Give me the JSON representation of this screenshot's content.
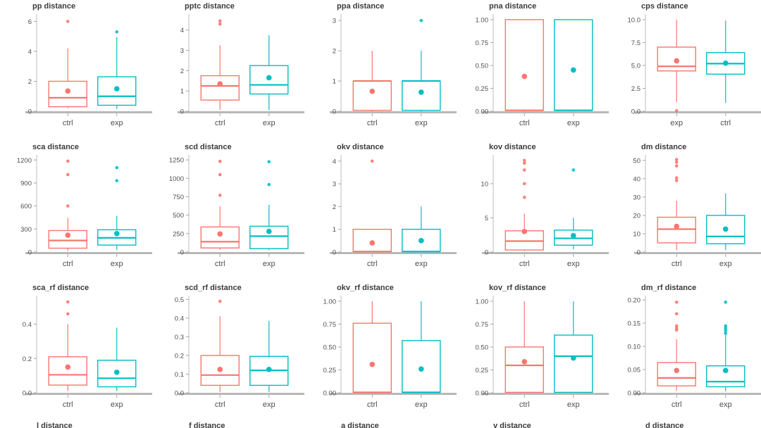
{
  "page": {
    "background": "#ffffff"
  },
  "colors": {
    "box_red": "#F8766D",
    "box_teal": "#00BFC4",
    "axis_line": "#b8b8b8",
    "tick_mark": "#a6a6a6",
    "tick_text": "#4f4f4f",
    "title_text": "#3b3b3b"
  },
  "layout_hints": {
    "columns": 5,
    "full_rows": 3,
    "partial_fourth_row": true,
    "grid": "off",
    "legend": "none"
  },
  "partial_bottom_titles": [
    "l distance",
    "f distance",
    "a distance",
    "v distance",
    "d distance"
  ],
  "chart_data": [
    {
      "type": "box",
      "title": "pp distance",
      "ylim": [
        0,
        6.3
      ],
      "yticks": [
        0,
        2,
        4,
        6
      ],
      "ytick_labels": [
        "0",
        "2",
        "4",
        "6"
      ],
      "categories": [
        "ctrl",
        "exp"
      ],
      "series": [
        {
          "name": "ctrl",
          "color": "#F8766D",
          "lo": 0.2,
          "q1": 0.3,
          "median": 0.9,
          "q3": 2.0,
          "hi": 4.2,
          "mean": 1.35,
          "outliers": [
            6.0
          ]
        },
        {
          "name": "exp",
          "color": "#00BFC4",
          "lo": 0.15,
          "q1": 0.4,
          "median": 1.0,
          "q3": 2.3,
          "hi": 4.95,
          "mean": 1.5,
          "outliers": [
            5.3
          ]
        }
      ]
    },
    {
      "type": "box",
      "title": "pptc distance",
      "ylim": [
        0,
        4.65
      ],
      "yticks": [
        0,
        1,
        2,
        3,
        4
      ],
      "ytick_labels": [
        "0",
        "1",
        "2",
        "3",
        "4"
      ],
      "categories": [
        "ctrl",
        "exp"
      ],
      "series": [
        {
          "name": "ctrl",
          "color": "#F8766D",
          "lo": 0.07,
          "q1": 0.55,
          "median": 1.25,
          "q3": 1.75,
          "hi": 3.25,
          "mean": 1.35,
          "outliers": [
            4.3,
            4.45
          ]
        },
        {
          "name": "exp",
          "color": "#00BFC4",
          "lo": 0.05,
          "q1": 0.85,
          "median": 1.3,
          "q3": 2.25,
          "hi": 3.75,
          "mean": 1.65,
          "outliers": []
        }
      ]
    },
    {
      "type": "box",
      "title": "ppa distance",
      "ylim": [
        0,
        3.12
      ],
      "yticks": [
        0,
        1,
        2,
        3
      ],
      "ytick_labels": [
        "0",
        "1",
        "2",
        "3"
      ],
      "categories": [
        "ctrl",
        "exp"
      ],
      "series": [
        {
          "name": "ctrl",
          "color": "#F8766D",
          "lo": 0,
          "q1": 0.03,
          "median": 1.0,
          "q3": 1.0,
          "hi": 2.0,
          "mean": 0.66,
          "outliers": []
        },
        {
          "name": "exp",
          "color": "#00BFC4",
          "lo": 0,
          "q1": 0.03,
          "median": 1.0,
          "q3": 1.0,
          "hi": 2.0,
          "mean": 0.63,
          "outliers": [
            3.0
          ]
        }
      ]
    },
    {
      "type": "box",
      "title": "pna distance",
      "ylim": [
        0,
        1.03
      ],
      "yticks": [
        0,
        0.25,
        0.5,
        0.75,
        1
      ],
      "ytick_labels": [
        "0.00",
        "0.25",
        "0.50",
        "0.75",
        "1.00"
      ],
      "categories": [
        "ctrl",
        "exp"
      ],
      "series": [
        {
          "name": "ctrl",
          "color": "#F8766D",
          "lo": 0,
          "q1": 0.01,
          "median": 0.01,
          "q3": 1.0,
          "hi": 1.0,
          "mean": 0.38,
          "outliers": []
        },
        {
          "name": "exp",
          "color": "#00BFC4",
          "lo": 0,
          "q1": 0.01,
          "median": 0.01,
          "q3": 1.0,
          "hi": 1.0,
          "mean": 0.45,
          "outliers": []
        }
      ]
    },
    {
      "type": "box",
      "title": "cps distance",
      "ylim": [
        0,
        10.3
      ],
      "yticks": [
        0,
        2.5,
        5,
        7.5,
        10
      ],
      "ytick_labels": [
        "0.0",
        "2.5",
        "5.0",
        "7.5",
        "10.0"
      ],
      "categories": [
        "exp",
        "ctrl"
      ],
      "series": [
        {
          "name": "exp",
          "color": "#F8766D",
          "lo": 1.0,
          "q1": 4.4,
          "median": 4.9,
          "q3": 7.0,
          "hi": 10.0,
          "mean": 5.5,
          "outliers": [
            0.05
          ]
        },
        {
          "name": "ctrl",
          "color": "#00BFC4",
          "lo": 0.9,
          "q1": 4.05,
          "median": 5.2,
          "q3": 6.4,
          "hi": 9.9,
          "mean": 5.25,
          "outliers": []
        }
      ]
    },
    {
      "type": "box",
      "title": "sca distance",
      "ylim": [
        0,
        1230
      ],
      "yticks": [
        0,
        300,
        600,
        900,
        1200
      ],
      "ytick_labels": [
        "0",
        "300",
        "600",
        "900",
        "1200"
      ],
      "categories": [
        "ctrl",
        "exp"
      ],
      "series": [
        {
          "name": "ctrl",
          "color": "#F8766D",
          "lo": 15,
          "q1": 50,
          "median": 150,
          "q3": 280,
          "hi": 445,
          "mean": 220,
          "outliers": [
            600,
            1010,
            1185
          ]
        },
        {
          "name": "exp",
          "color": "#00BFC4",
          "lo": 25,
          "q1": 90,
          "median": 185,
          "q3": 290,
          "hi": 470,
          "mean": 240,
          "outliers": [
            930,
            1100
          ]
        }
      ]
    },
    {
      "type": "box",
      "title": "scd distance",
      "ylim": [
        0,
        1280
      ],
      "yticks": [
        0,
        250,
        500,
        750,
        1000,
        1250
      ],
      "ytick_labels": [
        "0",
        "250",
        "500",
        "750",
        "1000",
        "1250"
      ],
      "categories": [
        "ctrl",
        "exp"
      ],
      "series": [
        {
          "name": "ctrl",
          "color": "#F8766D",
          "lo": 30,
          "q1": 55,
          "median": 140,
          "q3": 340,
          "hi": 620,
          "mean": 245,
          "outliers": [
            770,
            1050,
            1230
          ]
        },
        {
          "name": "exp",
          "color": "#00BFC4",
          "lo": 25,
          "q1": 45,
          "median": 215,
          "q3": 350,
          "hi": 640,
          "mean": 280,
          "outliers": [
            915,
            1225
          ]
        }
      ]
    },
    {
      "type": "box",
      "title": "okv distance",
      "ylim": [
        0,
        4.15
      ],
      "yticks": [
        0,
        1,
        2,
        3,
        4
      ],
      "ytick_labels": [
        "0",
        "1",
        "2",
        "3",
        "4"
      ],
      "categories": [
        "ctrl",
        "exp"
      ],
      "series": [
        {
          "name": "ctrl",
          "color": "#F8766D",
          "lo": 0,
          "q1": 0.02,
          "median": 0.02,
          "q3": 1.0,
          "hi": 1.0,
          "mean": 0.4,
          "outliers": [
            4.0
          ]
        },
        {
          "name": "exp",
          "color": "#00BFC4",
          "lo": 0,
          "q1": 0.02,
          "median": 0.02,
          "q3": 1.0,
          "hi": 2.0,
          "mean": 0.5,
          "outliers": []
        }
      ]
    },
    {
      "type": "box",
      "title": "kov distance",
      "ylim": [
        0,
        13.8
      ],
      "yticks": [
        0,
        5,
        10
      ],
      "ytick_labels": [
        "0",
        "5",
        "10"
      ],
      "categories": [
        "ctrl",
        "exp"
      ],
      "series": [
        {
          "name": "ctrl",
          "color": "#F8766D",
          "lo": 0.15,
          "q1": 0.3,
          "median": 1.6,
          "q3": 3.1,
          "hi": 5.6,
          "mean": 3.0,
          "outliers": [
            8.0,
            10.0,
            12.0,
            13.0,
            13.4
          ]
        },
        {
          "name": "exp",
          "color": "#00BFC4",
          "lo": 0.4,
          "q1": 1.0,
          "median": 2.0,
          "q3": 3.2,
          "hi": 5.0,
          "mean": 2.4,
          "outliers": [
            12.0
          ]
        }
      ]
    },
    {
      "type": "box",
      "title": "dm distance",
      "ylim": [
        0,
        51.5
      ],
      "yticks": [
        0,
        10,
        20,
        30,
        40,
        50
      ],
      "ytick_labels": [
        "0",
        "10",
        "20",
        "30",
        "40",
        "50"
      ],
      "categories": [
        "ctrl",
        "exp"
      ],
      "series": [
        {
          "name": "ctrl",
          "color": "#F8766D",
          "lo": 1,
          "q1": 5,
          "median": 12.5,
          "q3": 19,
          "hi": 28,
          "mean": 14,
          "outliers": [
            39,
            40.5,
            47,
            49,
            50.5
          ]
        },
        {
          "name": "exp",
          "color": "#00BFC4",
          "lo": 1,
          "q1": 4.5,
          "median": 8.5,
          "q3": 20,
          "hi": 32,
          "mean": 12.5,
          "outliers": []
        }
      ]
    },
    {
      "type": "box",
      "title": "sca_rf distance",
      "ylim": [
        0,
        0.55
      ],
      "yticks": [
        0,
        0.2,
        0.4
      ],
      "ytick_labels": [
        "0.0",
        "0.2",
        "0.4"
      ],
      "categories": [
        "ctrl",
        "exp"
      ],
      "series": [
        {
          "name": "ctrl",
          "color": "#F8766D",
          "lo": 0.01,
          "q1": 0.045,
          "median": 0.105,
          "q3": 0.21,
          "hi": 0.4,
          "mean": 0.15,
          "outliers": [
            0.46,
            0.53
          ]
        },
        {
          "name": "exp",
          "color": "#00BFC4",
          "lo": 0.01,
          "q1": 0.035,
          "median": 0.085,
          "q3": 0.19,
          "hi": 0.38,
          "mean": 0.12,
          "outliers": []
        }
      ]
    },
    {
      "type": "box",
      "title": "scd_rf distance",
      "ylim": [
        0,
        0.505
      ],
      "yticks": [
        0,
        0.1,
        0.2,
        0.3,
        0.4,
        0.5
      ],
      "ytick_labels": [
        "0.0",
        "0.1",
        "0.2",
        "0.3",
        "0.4",
        "0.5"
      ],
      "categories": [
        "ctrl",
        "exp"
      ],
      "series": [
        {
          "name": "ctrl",
          "color": "#F8766D",
          "lo": 0.005,
          "q1": 0.04,
          "median": 0.095,
          "q3": 0.2,
          "hi": 0.41,
          "mean": 0.125,
          "outliers": [
            0.49
          ]
        },
        {
          "name": "exp",
          "color": "#00BFC4",
          "lo": 0.005,
          "q1": 0.04,
          "median": 0.12,
          "q3": 0.195,
          "hi": 0.385,
          "mean": 0.125,
          "outliers": []
        }
      ]
    },
    {
      "type": "box",
      "title": "okv_rf distance",
      "ylim": [
        0,
        1.03
      ],
      "yticks": [
        0,
        0.25,
        0.5,
        0.75,
        1
      ],
      "ytick_labels": [
        "0.00",
        "0.25",
        "0.50",
        "0.75",
        "1.00"
      ],
      "categories": [
        "ctrl",
        "exp"
      ],
      "series": [
        {
          "name": "ctrl",
          "color": "#F8766D",
          "lo": 0,
          "q1": 0.005,
          "median": 0.005,
          "q3": 0.76,
          "hi": 1.0,
          "mean": 0.31,
          "outliers": []
        },
        {
          "name": "exp",
          "color": "#00BFC4",
          "lo": 0,
          "q1": 0.005,
          "median": 0.005,
          "q3": 0.57,
          "hi": 1.0,
          "mean": 0.26,
          "outliers": []
        }
      ]
    },
    {
      "type": "box",
      "title": "kov_rf distance",
      "ylim": [
        0,
        1.03
      ],
      "yticks": [
        0,
        0.25,
        0.5,
        0.75,
        1
      ],
      "ytick_labels": [
        "0.00",
        "0.25",
        "0.50",
        "0.75",
        "1.00"
      ],
      "categories": [
        "ctrl",
        "exp"
      ],
      "series": [
        {
          "name": "ctrl",
          "color": "#F8766D",
          "lo": 0,
          "q1": 0.005,
          "median": 0.3,
          "q3": 0.5,
          "hi": 1.0,
          "mean": 0.34,
          "outliers": []
        },
        {
          "name": "exp",
          "color": "#00BFC4",
          "lo": 0,
          "q1": 0.005,
          "median": 0.4,
          "q3": 0.63,
          "hi": 1.0,
          "mean": 0.38,
          "outliers": []
        }
      ]
    },
    {
      "type": "box",
      "title": "dm_rf distance",
      "ylim": [
        0,
        0.203
      ],
      "yticks": [
        0,
        0.05,
        0.1,
        0.15,
        0.2
      ],
      "ytick_labels": [
        "0.00",
        "0.05",
        "0.10",
        "0.15",
        "0.20"
      ],
      "categories": [
        "ctrl",
        "exp"
      ],
      "series": [
        {
          "name": "ctrl",
          "color": "#F8766D",
          "lo": 0.004,
          "q1": 0.015,
          "median": 0.032,
          "q3": 0.065,
          "hi": 0.115,
          "mean": 0.048,
          "outliers": [
            0.135,
            0.139,
            0.144,
            0.17,
            0.195
          ]
        },
        {
          "name": "exp",
          "color": "#00BFC4",
          "lo": 0.003,
          "q1": 0.013,
          "median": 0.024,
          "q3": 0.058,
          "hi": 0.125,
          "mean": 0.048,
          "outliers": [
            0.128,
            0.134,
            0.139,
            0.144,
            0.195
          ]
        }
      ]
    }
  ]
}
